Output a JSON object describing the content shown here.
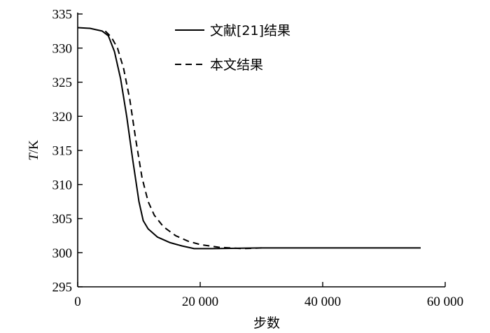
{
  "chart_data": {
    "type": "line",
    "xlabel": "步数",
    "ylabel_italic": "T",
    "ylabel_unit": "/K",
    "xlim": [
      0,
      60000
    ],
    "ylim": [
      295,
      335
    ],
    "x_ticks": [
      {
        "value": 0,
        "label": "0"
      },
      {
        "value": 20000,
        "label": "20 000"
      },
      {
        "value": 40000,
        "label": "40 000"
      },
      {
        "value": 60000,
        "label": "60 000"
      }
    ],
    "y_ticks": [
      {
        "value": 295,
        "label": "295"
      },
      {
        "value": 300,
        "label": "300"
      },
      {
        "value": 305,
        "label": "305"
      },
      {
        "value": 310,
        "label": "310"
      },
      {
        "value": 315,
        "label": "315"
      },
      {
        "value": 320,
        "label": "320"
      },
      {
        "value": 325,
        "label": "325"
      },
      {
        "value": 330,
        "label": "330"
      },
      {
        "value": 335,
        "label": "335"
      }
    ],
    "grid": false,
    "legend_position": "top-right",
    "series": [
      {
        "name": "文献[21]结果",
        "style": "solid",
        "color": "#000000",
        "points": [
          [
            0,
            333.0
          ],
          [
            2000,
            332.9
          ],
          [
            4000,
            332.5
          ],
          [
            5000,
            331.8
          ],
          [
            6000,
            329.5
          ],
          [
            7000,
            325.5
          ],
          [
            8000,
            320.0
          ],
          [
            9000,
            313.5
          ],
          [
            10000,
            307.5
          ],
          [
            10700,
            304.7
          ],
          [
            11500,
            303.5
          ],
          [
            13000,
            302.3
          ],
          [
            15000,
            301.5
          ],
          [
            17000,
            301.0
          ],
          [
            19000,
            300.6
          ],
          [
            22000,
            300.6
          ],
          [
            30000,
            300.7
          ],
          [
            40000,
            300.7
          ],
          [
            50000,
            300.7
          ],
          [
            56000,
            300.7
          ]
        ]
      },
      {
        "name": "本文结果",
        "style": "dashed",
        "color": "#000000",
        "points": [
          [
            4500,
            332.5
          ],
          [
            5500,
            331.6
          ],
          [
            6500,
            330.0
          ],
          [
            7500,
            327.0
          ],
          [
            8500,
            322.5
          ],
          [
            9500,
            316.5
          ],
          [
            10500,
            311.0
          ],
          [
            11500,
            307.5
          ],
          [
            12500,
            305.5
          ],
          [
            14000,
            303.8
          ],
          [
            16000,
            302.5
          ],
          [
            18000,
            301.7
          ],
          [
            20000,
            301.2
          ],
          [
            23000,
            300.8
          ],
          [
            27000,
            300.6
          ],
          [
            30000,
            300.7
          ]
        ]
      }
    ]
  }
}
